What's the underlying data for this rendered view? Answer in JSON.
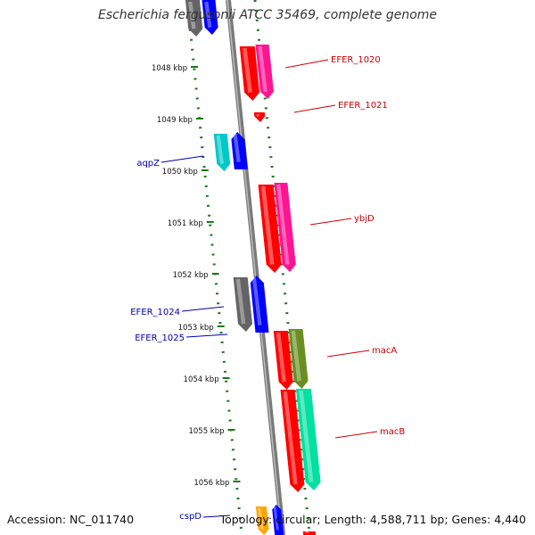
{
  "title": "Escherichia fergusonii ATCC 35469, complete genome",
  "accession": "Accession: NC_011740",
  "summary": "Topology: circular; Length: 4,588,711 bp; Genes: 4,440",
  "ticks": [
    "1048 kbp",
    "1049 kbp",
    "1050 kbp",
    "1051 kbp",
    "1052 kbp",
    "1053 kbp",
    "1054 kbp",
    "1055 kbp",
    "1056 kbp"
  ],
  "gene_labels": [
    "EFER_1020",
    "EFER_1021",
    "aqpZ",
    "ybjD",
    "EFER_1024",
    "EFER_1025",
    "macA",
    "macB",
    "cspD"
  ],
  "colors": {
    "red": "#ff0000",
    "magenta": "#ff1493",
    "blue": "#0000ff",
    "cyan": "#00c8c8",
    "gray": "#646464",
    "olive": "#6b8e23",
    "mint": "#00e0a0",
    "orange": "#ffa500",
    "label_red": "#cc0000",
    "label_blue": "#0000aa",
    "dots": "#1a7a1a",
    "backbone": "#7a7a7a"
  }
}
